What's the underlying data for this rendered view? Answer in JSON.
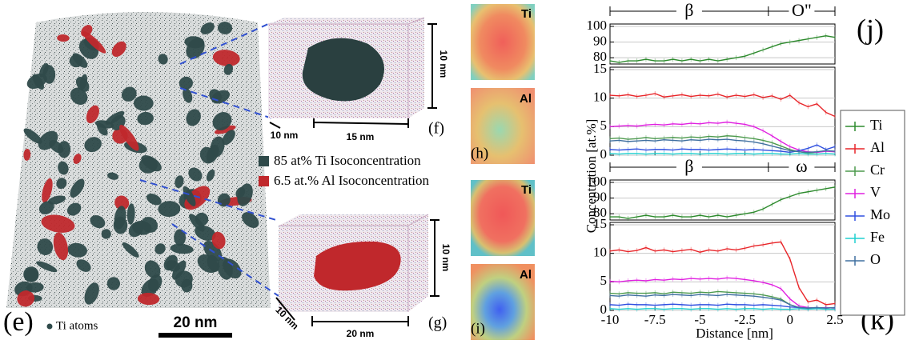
{
  "figure": {
    "panel_e": "(e)",
    "ti_atoms": "Ti atoms",
    "scale_bar": "20 nm",
    "panel_f": "(f)",
    "f_dim_height": "10 nm",
    "f_dim_depth": "10 nm",
    "f_dim_width": "15 nm",
    "panel_g": "(g)",
    "g_dim_height": "10 nm",
    "g_dim_depth": "10 nm",
    "g_dim_width": "20 nm",
    "legend_ti_iso": "85 at% Ti Isoconcentration",
    "legend_al_iso": "6.5 at.% Al Isoconcentration",
    "map_h_top": "Ti",
    "map_h_bottom": "Al",
    "panel_h": "(h)",
    "map_i_top": "Ti",
    "map_i_bottom": "Al",
    "panel_i": "(i)",
    "panel_j": "(j)",
    "panel_k": "(k)",
    "ylabel": "Concentration [at.%]"
  },
  "chart_data": [
    {
      "type": "line",
      "annotations": [
        "β",
        "O\""
      ],
      "x": [
        -10,
        -9.5,
        -9,
        -8.5,
        -8,
        -7.5,
        -7,
        -6.5,
        -6,
        -5.5,
        -5,
        -4.5,
        -4,
        -3.5,
        -3,
        -2.5,
        -2,
        -1.5,
        -1,
        -0.5,
        0,
        0.5,
        1,
        1.5,
        2,
        2.5
      ],
      "xlim": [
        -10,
        2.5
      ],
      "ylim": [
        76,
        100
      ],
      "yticks": [
        80,
        90,
        100
      ],
      "grid": true,
      "series": [
        {
          "name": "Ti",
          "color": "#2e8b2e",
          "values": [
            78,
            77,
            78,
            78,
            79,
            78,
            78,
            79,
            78,
            79,
            78,
            79,
            78,
            79,
            80,
            81,
            83,
            85,
            87,
            89,
            90,
            91,
            92,
            93,
            94,
            93
          ]
        }
      ]
    },
    {
      "type": "line",
      "x": [
        -10,
        -9.5,
        -9,
        -8.5,
        -8,
        -7.5,
        -7,
        -6.5,
        -6,
        -5.5,
        -5,
        -4.5,
        -4,
        -3.5,
        -3,
        -2.5,
        -2,
        -1.5,
        -1,
        -0.5,
        0,
        0.5,
        1,
        1.5,
        2,
        2.5
      ],
      "xlim": [
        -10,
        2.5
      ],
      "xticks": [
        -10,
        -7.5,
        -5,
        -2.5,
        0,
        2.5
      ],
      "ylim": [
        0,
        15
      ],
      "yticks": [
        0,
        5,
        10,
        15
      ],
      "grid": true,
      "series": [
        {
          "name": "Al",
          "color": "#e8262a",
          "values": [
            10.5,
            10.4,
            10.6,
            10.3,
            10.5,
            10.8,
            10.2,
            10.4,
            10.6,
            10.3,
            10.5,
            10.4,
            10.7,
            10.2,
            10.5,
            10.3,
            10.6,
            10.1,
            10.4,
            9.8,
            10.5,
            9.2,
            8.5,
            9.0,
            7.5,
            6.8
          ]
        },
        {
          "name": "Cr",
          "color": "#4d9a4d",
          "values": [
            2.9,
            3.0,
            2.8,
            2.9,
            3.1,
            2.9,
            3.0,
            3.1,
            3.0,
            3.2,
            3.1,
            3.3,
            3.2,
            3.4,
            3.3,
            3.1,
            2.9,
            2.6,
            2.2,
            1.6,
            1.0,
            0.6,
            0.4,
            0.5,
            0.8,
            0.6
          ]
        },
        {
          "name": "V",
          "color": "#e020e0",
          "values": [
            5.0,
            5.1,
            5.2,
            5.1,
            5.3,
            5.4,
            5.3,
            5.5,
            5.4,
            5.6,
            5.5,
            5.7,
            5.6,
            5.8,
            5.6,
            5.4,
            5.0,
            4.3,
            3.4,
            2.4,
            1.5,
            0.9,
            0.6,
            0.5,
            0.7,
            0.6
          ]
        },
        {
          "name": "Mo",
          "color": "#3050e0",
          "values": [
            1.0,
            0.9,
            1.0,
            1.1,
            0.9,
            1.0,
            1.0,
            0.9,
            1.1,
            1.0,
            1.0,
            0.9,
            1.0,
            1.1,
            1.0,
            0.9,
            1.0,
            0.9,
            0.8,
            0.7,
            0.5,
            0.8,
            1.2,
            1.8,
            1.0,
            1.5
          ]
        },
        {
          "name": "Fe",
          "color": "#20d0d0",
          "values": [
            0.3,
            0.2,
            0.3,
            0.3,
            0.2,
            0.3,
            0.3,
            0.2,
            0.3,
            0.3,
            0.2,
            0.3,
            0.3,
            0.2,
            0.3,
            0.3,
            0.2,
            0.3,
            0.3,
            0.2,
            0.2,
            0.3,
            0.2,
            0.2,
            0.3,
            0.2
          ]
        },
        {
          "name": "O",
          "color": "#4070a0",
          "values": [
            2.5,
            2.6,
            2.4,
            2.5,
            2.6,
            2.5,
            2.7,
            2.6,
            2.5,
            2.7,
            2.6,
            2.8,
            2.7,
            2.8,
            2.6,
            2.5,
            2.3,
            2.0,
            1.6,
            1.2,
            0.8,
            0.6,
            0.5,
            0.6,
            0.8,
            0.7
          ]
        }
      ]
    },
    {
      "type": "line",
      "annotations": [
        "β",
        "ω"
      ],
      "x": [
        -10,
        -9.5,
        -9,
        -8.5,
        -8,
        -7.5,
        -7,
        -6.5,
        -6,
        -5.5,
        -5,
        -4.5,
        -4,
        -3.5,
        -3,
        -2.5,
        -2,
        -1.5,
        -1,
        -0.5,
        0,
        0.5,
        1,
        1.5,
        2,
        2.5
      ],
      "xlim": [
        -10,
        2.5
      ],
      "ylim": [
        76,
        100
      ],
      "yticks": [
        80,
        90,
        100
      ],
      "grid": true,
      "series": [
        {
          "name": "Ti",
          "color": "#2e8b2e",
          "values": [
            78,
            78,
            77,
            78,
            79,
            78,
            78,
            79,
            78,
            78,
            79,
            78,
            79,
            78,
            79,
            80,
            81,
            83,
            86,
            89,
            91,
            93,
            94,
            95,
            96,
            97
          ]
        }
      ]
    },
    {
      "type": "line",
      "x": [
        -10,
        -9.5,
        -9,
        -8.5,
        -8,
        -7.5,
        -7,
        -6.5,
        -6,
        -5.5,
        -5,
        -4.5,
        -4,
        -3.5,
        -3,
        -2.5,
        -2,
        -1.5,
        -1,
        -0.5,
        0,
        0.5,
        1,
        1.5,
        2,
        2.5
      ],
      "xlim": [
        -10,
        2.5
      ],
      "xticks": [
        -10,
        -7.5,
        -5,
        -2.5,
        0,
        2.5
      ],
      "xlabel": "Distance [nm]",
      "ylim": [
        0,
        15
      ],
      "yticks": [
        0,
        5,
        10,
        15
      ],
      "grid": true,
      "series": [
        {
          "name": "Al",
          "color": "#e8262a",
          "values": [
            10.4,
            10.6,
            10.3,
            10.5,
            11.0,
            10.4,
            10.6,
            10.3,
            10.5,
            10.7,
            10.2,
            10.6,
            10.4,
            10.8,
            10.6,
            10.9,
            11.3,
            11.5,
            11.8,
            12.0,
            9.0,
            4.0,
            1.5,
            1.8,
            1.0,
            1.2
          ]
        },
        {
          "name": "Cr",
          "color": "#4d9a4d",
          "values": [
            3.0,
            2.9,
            3.1,
            3.0,
            3.0,
            3.1,
            2.9,
            3.2,
            3.1,
            3.0,
            3.2,
            3.1,
            3.3,
            3.2,
            3.1,
            3.0,
            2.9,
            2.7,
            2.4,
            2.0,
            1.0,
            0.5,
            0.4,
            0.4,
            0.5,
            0.4
          ]
        },
        {
          "name": "V",
          "color": "#e020e0",
          "values": [
            5.1,
            5.0,
            5.2,
            5.3,
            5.2,
            5.4,
            5.3,
            5.5,
            5.4,
            5.6,
            5.5,
            5.6,
            5.5,
            5.7,
            5.6,
            5.4,
            5.2,
            4.9,
            4.5,
            3.8,
            2.0,
            0.8,
            0.5,
            0.4,
            0.5,
            0.4
          ]
        },
        {
          "name": "Mo",
          "color": "#3050e0",
          "values": [
            1.0,
            0.9,
            1.1,
            1.0,
            1.0,
            0.9,
            1.0,
            1.1,
            1.0,
            0.9,
            1.0,
            1.0,
            0.9,
            1.1,
            1.0,
            1.0,
            0.9,
            1.0,
            0.9,
            0.8,
            0.6,
            0.5,
            0.4,
            0.5,
            0.4,
            0.5
          ]
        },
        {
          "name": "Fe",
          "color": "#20d0d0",
          "values": [
            0.3,
            0.2,
            0.3,
            0.2,
            0.3,
            0.3,
            0.2,
            0.3,
            0.3,
            0.2,
            0.3,
            0.3,
            0.2,
            0.3,
            0.2,
            0.3,
            0.3,
            0.2,
            0.3,
            0.2,
            0.2,
            0.3,
            0.2,
            0.3,
            0.2,
            0.2
          ]
        },
        {
          "name": "O",
          "color": "#4070a0",
          "values": [
            2.6,
            2.5,
            2.7,
            2.6,
            2.5,
            2.7,
            2.6,
            2.8,
            2.7,
            2.6,
            2.8,
            2.7,
            2.6,
            2.8,
            2.7,
            2.6,
            2.5,
            2.3,
            2.1,
            1.8,
            1.0,
            0.5,
            0.4,
            0.5,
            0.4,
            0.5
          ]
        }
      ]
    }
  ]
}
